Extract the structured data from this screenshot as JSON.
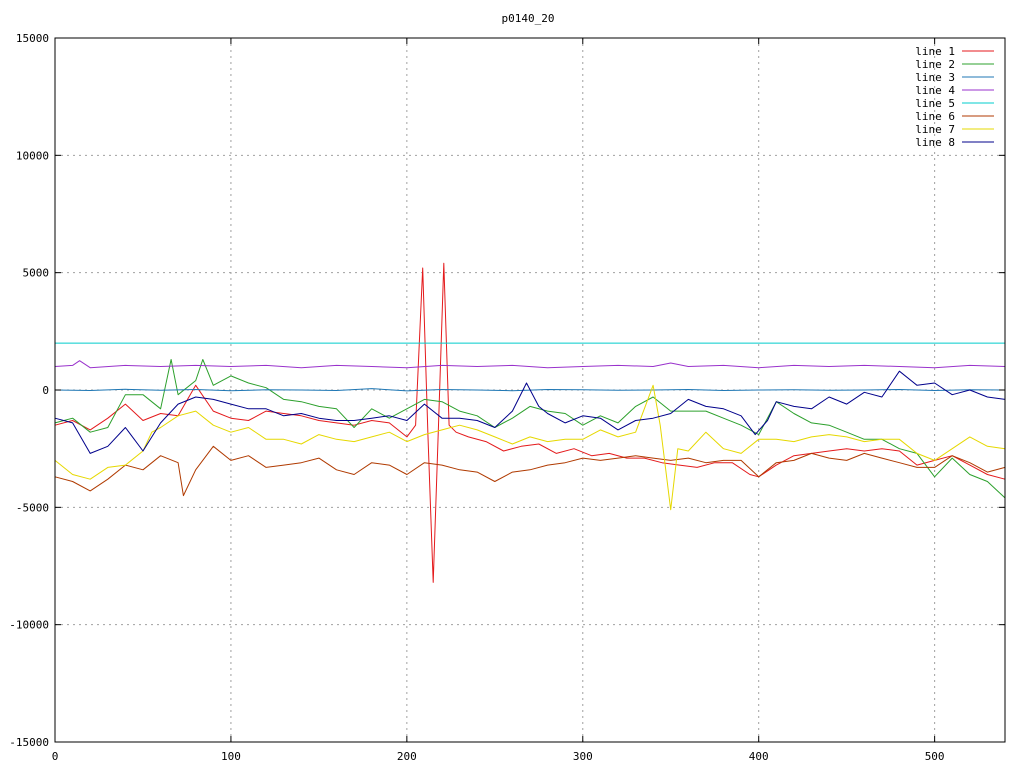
{
  "chart_data": {
    "type": "line",
    "title": "p0140_20",
    "xlabel": "",
    "ylabel": "",
    "xlim": [
      0,
      540
    ],
    "ylim": [
      -15000,
      15000
    ],
    "xticks": [
      0,
      100,
      200,
      300,
      400,
      500
    ],
    "yticks": [
      -15000,
      -10000,
      -5000,
      0,
      5000,
      10000,
      15000
    ],
    "xtick_labels": [
      "0",
      "100",
      "200",
      "300",
      "400",
      "500"
    ],
    "ytick_labels": [
      "-15000",
      "-10000",
      "-5000",
      "0",
      "5000",
      "10000",
      "15000"
    ],
    "grid": true,
    "legend_position": "top-right",
    "series": [
      {
        "name": "line 1",
        "color": "#e41a1c",
        "x": [
          0,
          10,
          20,
          30,
          40,
          50,
          60,
          70,
          80,
          90,
          100,
          110,
          120,
          130,
          140,
          150,
          160,
          170,
          180,
          190,
          200,
          205,
          209,
          212,
          215,
          218,
          221,
          224,
          228,
          235,
          245,
          255,
          265,
          275,
          285,
          295,
          305,
          315,
          325,
          335,
          345,
          355,
          365,
          375,
          385,
          395,
          400,
          410,
          420,
          430,
          440,
          450,
          460,
          470,
          480,
          490,
          500,
          510,
          520,
          530,
          540
        ],
        "y": [
          -1500,
          -1300,
          -1700,
          -1200,
          -600,
          -1300,
          -1000,
          -1100,
          200,
          -900,
          -1200,
          -1300,
          -900,
          -1000,
          -1100,
          -1300,
          -1400,
          -1500,
          -1300,
          -1400,
          -2000,
          -1500,
          5200,
          -2000,
          -8200,
          -1500,
          5400,
          -1500,
          -1800,
          -2000,
          -2200,
          -2600,
          -2400,
          -2300,
          -2700,
          -2500,
          -2800,
          -2700,
          -2900,
          -2900,
          -3100,
          -3200,
          -3300,
          -3100,
          -3100,
          -3600,
          -3700,
          -3200,
          -2800,
          -2700,
          -2600,
          -2500,
          -2600,
          -2500,
          -2600,
          -3200,
          -3000,
          -2800,
          -3200,
          -3600,
          -3800
        ]
      },
      {
        "name": "line 2",
        "color": "#2ca02c",
        "x": [
          0,
          10,
          20,
          30,
          40,
          50,
          60,
          66,
          70,
          80,
          84,
          90,
          100,
          110,
          120,
          130,
          140,
          150,
          160,
          170,
          180,
          190,
          200,
          210,
          220,
          230,
          240,
          250,
          260,
          270,
          280,
          290,
          300,
          310,
          320,
          330,
          340,
          350,
          360,
          370,
          380,
          390,
          400,
          410,
          420,
          430,
          440,
          450,
          460,
          470,
          480,
          490,
          500,
          510,
          520,
          530,
          540
        ],
        "y": [
          -1400,
          -1200,
          -1800,
          -1600,
          -200,
          -200,
          -800,
          1300,
          -200,
          400,
          1300,
          200,
          600,
          300,
          100,
          -400,
          -500,
          -700,
          -800,
          -1600,
          -800,
          -1200,
          -800,
          -400,
          -500,
          -900,
          -1100,
          -1600,
          -1200,
          -700,
          -900,
          -1000,
          -1500,
          -1100,
          -1400,
          -700,
          -300,
          -900,
          -900,
          -900,
          -1200,
          -1500,
          -1900,
          -500,
          -1000,
          -1400,
          -1500,
          -1800,
          -2100,
          -2100,
          -2500,
          -2700,
          -3700,
          -2900,
          -3600,
          -3900,
          -4600
        ]
      },
      {
        "name": "line 3",
        "color": "#1f77b4",
        "x": [
          0,
          20,
          40,
          60,
          80,
          100,
          120,
          140,
          160,
          180,
          200,
          220,
          240,
          260,
          280,
          300,
          320,
          340,
          360,
          380,
          400,
          420,
          440,
          460,
          480,
          500,
          520,
          540
        ],
        "y": [
          0,
          -20,
          30,
          -10,
          20,
          -30,
          10,
          0,
          -20,
          60,
          -40,
          20,
          0,
          -30,
          20,
          10,
          -10,
          0,
          20,
          -20,
          0,
          10,
          -10,
          0,
          20,
          -20,
          10,
          0
        ]
      },
      {
        "name": "line 4",
        "color": "#9932cc",
        "x": [
          0,
          10,
          14,
          20,
          40,
          60,
          80,
          100,
          120,
          140,
          160,
          180,
          200,
          220,
          240,
          260,
          280,
          300,
          320,
          340,
          350,
          360,
          380,
          400,
          420,
          440,
          460,
          480,
          500,
          520,
          540
        ],
        "y": [
          1000,
          1050,
          1250,
          950,
          1050,
          1000,
          1050,
          1000,
          1050,
          950,
          1050,
          1000,
          950,
          1050,
          1000,
          1050,
          950,
          1000,
          1050,
          1000,
          1150,
          1000,
          1050,
          950,
          1050,
          1000,
          1050,
          1000,
          950,
          1050,
          1000
        ]
      },
      {
        "name": "line 5",
        "color": "#00cccc",
        "x": [
          0,
          540
        ],
        "y": [
          2000,
          2000
        ]
      },
      {
        "name": "line 6",
        "color": "#b03a00",
        "x": [
          0,
          10,
          20,
          30,
          40,
          50,
          60,
          70,
          73,
          80,
          90,
          100,
          110,
          120,
          130,
          140,
          150,
          160,
          170,
          180,
          190,
          200,
          210,
          220,
          230,
          240,
          250,
          260,
          270,
          280,
          290,
          300,
          310,
          320,
          330,
          340,
          350,
          360,
          370,
          380,
          390,
          400,
          410,
          420,
          430,
          440,
          450,
          460,
          470,
          480,
          490,
          500,
          510,
          520,
          530,
          540
        ],
        "y": [
          -3700,
          -3900,
          -4300,
          -3800,
          -3200,
          -3400,
          -2800,
          -3100,
          -4500,
          -3400,
          -2400,
          -3000,
          -2800,
          -3300,
          -3200,
          -3100,
          -2900,
          -3400,
          -3600,
          -3100,
          -3200,
          -3600,
          -3100,
          -3200,
          -3400,
          -3500,
          -3900,
          -3500,
          -3400,
          -3200,
          -3100,
          -2900,
          -3000,
          -2900,
          -2800,
          -2900,
          -3000,
          -2900,
          -3100,
          -3000,
          -3000,
          -3700,
          -3100,
          -3000,
          -2700,
          -2900,
          -3000,
          -2700,
          -2900,
          -3100,
          -3300,
          -3300,
          -2800,
          -3100,
          -3500,
          -3300
        ]
      },
      {
        "name": "line 7",
        "color": "#e6d800",
        "x": [
          0,
          10,
          20,
          30,
          40,
          50,
          55,
          60,
          70,
          80,
          90,
          100,
          110,
          120,
          130,
          140,
          150,
          160,
          170,
          180,
          190,
          200,
          210,
          220,
          230,
          240,
          250,
          260,
          270,
          280,
          290,
          300,
          310,
          320,
          330,
          340,
          344,
          350,
          354,
          360,
          370,
          380,
          390,
          400,
          410,
          420,
          430,
          440,
          450,
          460,
          470,
          480,
          490,
          500,
          510,
          520,
          530,
          540
        ],
        "y": [
          -3000,
          -3600,
          -3800,
          -3300,
          -3200,
          -2600,
          -1800,
          -1600,
          -1100,
          -900,
          -1500,
          -1800,
          -1600,
          -2100,
          -2100,
          -2300,
          -1900,
          -2100,
          -2200,
          -2000,
          -1800,
          -2200,
          -1900,
          -1700,
          -1500,
          -1700,
          -2000,
          -2300,
          -2000,
          -2200,
          -2100,
          -2100,
          -1700,
          -2000,
          -1800,
          200,
          -1500,
          -5100,
          -2500,
          -2600,
          -1800,
          -2500,
          -2700,
          -2100,
          -2100,
          -2200,
          -2000,
          -1900,
          -2000,
          -2200,
          -2100,
          -2100,
          -2700,
          -3000,
          -2500,
          -2000,
          -2400,
          -2500
        ]
      },
      {
        "name": "line 8",
        "color": "#00008b",
        "x": [
          0,
          10,
          20,
          30,
          40,
          50,
          60,
          70,
          80,
          90,
          100,
          110,
          120,
          130,
          140,
          150,
          160,
          170,
          180,
          190,
          200,
          210,
          220,
          230,
          240,
          250,
          260,
          268,
          275,
          280,
          290,
          300,
          310,
          320,
          330,
          340,
          350,
          360,
          370,
          380,
          390,
          398,
          405,
          410,
          420,
          430,
          440,
          450,
          460,
          470,
          480,
          490,
          500,
          510,
          520,
          530,
          540
        ],
        "y": [
          -1200,
          -1400,
          -2700,
          -2400,
          -1600,
          -2600,
          -1400,
          -600,
          -300,
          -400,
          -600,
          -800,
          -800,
          -1100,
          -1000,
          -1200,
          -1300,
          -1300,
          -1200,
          -1100,
          -1300,
          -600,
          -1200,
          -1200,
          -1300,
          -1600,
          -900,
          300,
          -700,
          -1000,
          -1400,
          -1100,
          -1200,
          -1700,
          -1300,
          -1200,
          -1000,
          -400,
          -700,
          -800,
          -1100,
          -1900,
          -1300,
          -500,
          -700,
          -800,
          -300,
          -600,
          -100,
          -300,
          800,
          200,
          300,
          -200,
          0,
          -300,
          -400
        ]
      }
    ]
  }
}
